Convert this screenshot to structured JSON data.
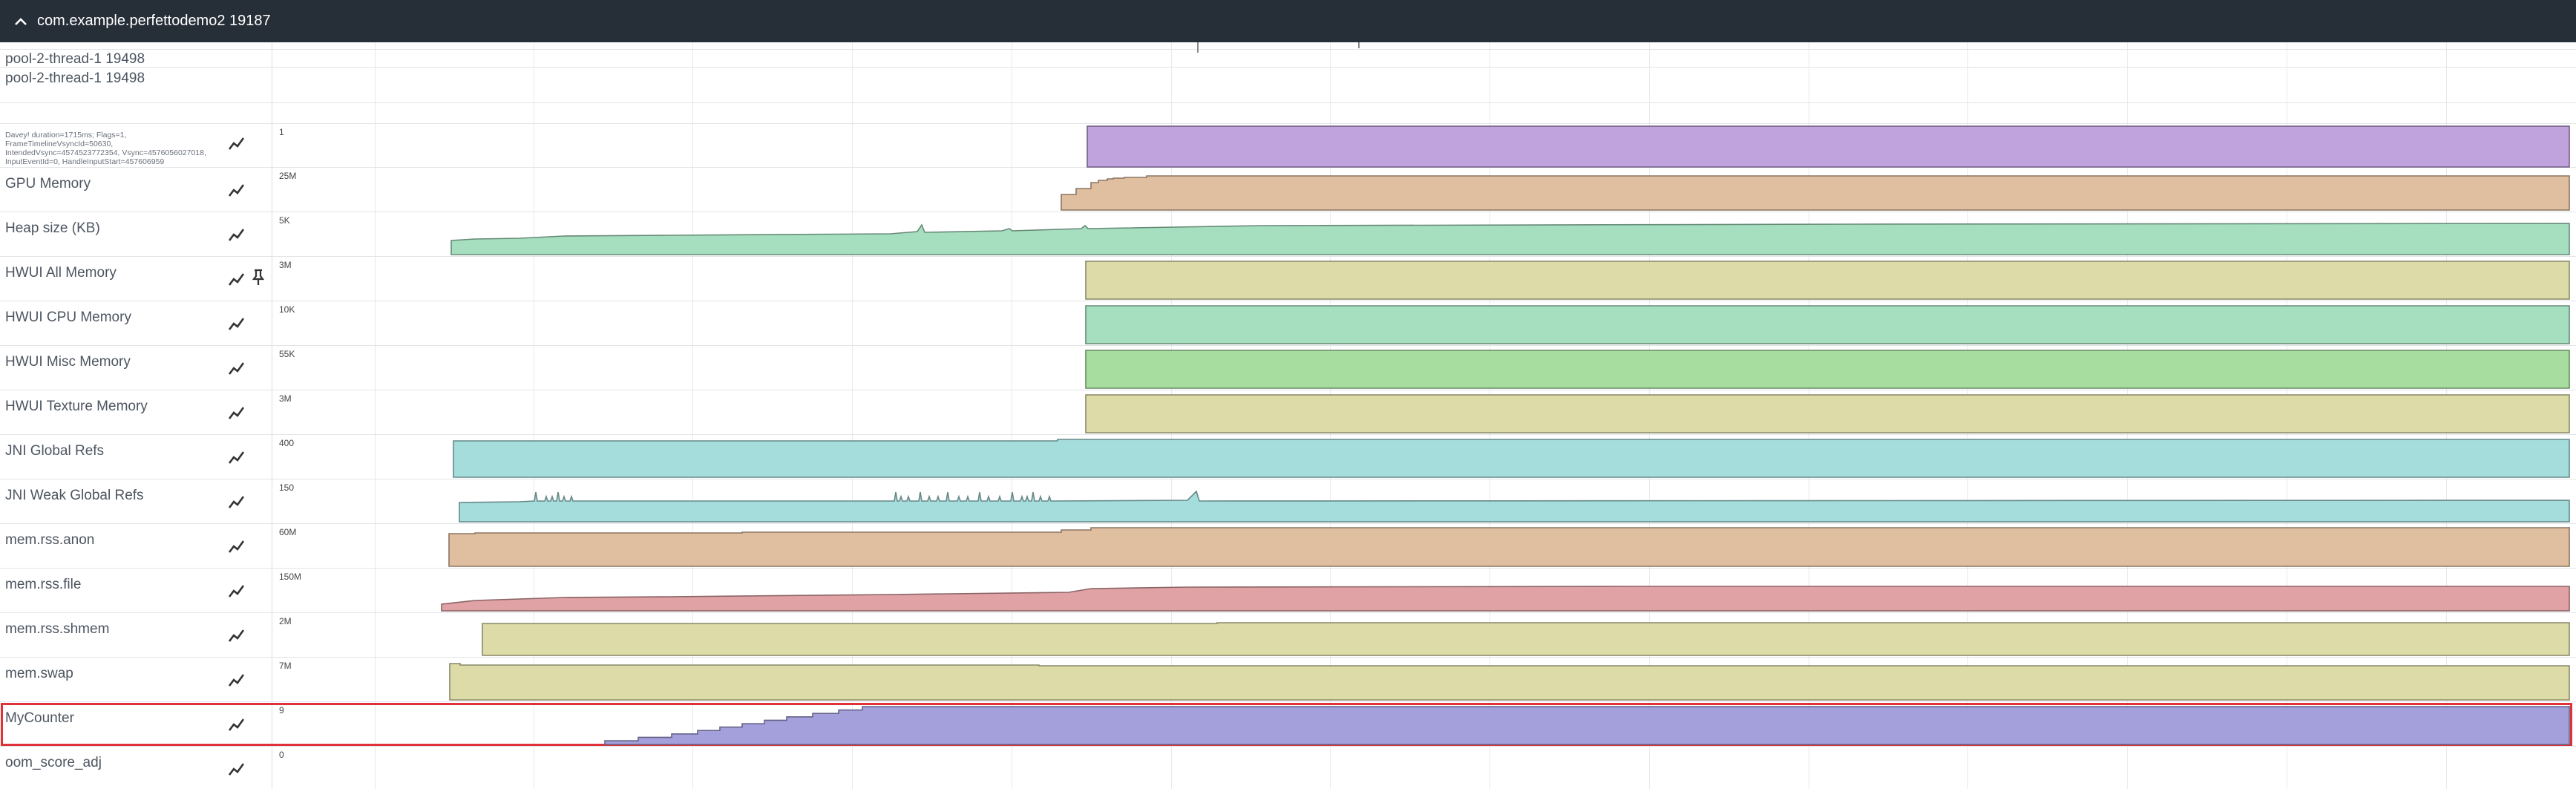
{
  "header": {
    "process_title": "com.example.perfettodemo2 19187",
    "collapse_icon": "chevron-up-icon"
  },
  "threads": [
    {
      "label": "pool-2-thread-1 19498"
    },
    {
      "label": "pool-2-thread-1 19498"
    }
  ],
  "frame_track": {
    "label": "Davey! duration=1715ms; Flags=1, FrameTimelineVsyncId=50630, IntendedVsync=4574523772354, Vsync=4576056027018, InputEventId=0, HandleInputStart=457606959",
    "scale": "1",
    "color": "#c0a3dd"
  },
  "counter_tracks": [
    {
      "name": "GPU Memory",
      "scale": "25M",
      "color": "#e0bea0"
    },
    {
      "name": "Heap size (KB)",
      "scale": "5K",
      "color": "#a6dfc0"
    },
    {
      "name": "HWUI All Memory",
      "scale": "3M",
      "color": "#dddba8",
      "pinned": true
    },
    {
      "name": "HWUI CPU Memory",
      "scale": "10K",
      "color": "#a6dfc0"
    },
    {
      "name": "HWUI Misc Memory",
      "scale": "55K",
      "color": "#a7de9f"
    },
    {
      "name": "HWUI Texture Memory",
      "scale": "3M",
      "color": "#dddba8"
    },
    {
      "name": "JNI Global Refs",
      "scale": "400",
      "color": "#a5dddc"
    },
    {
      "name": "JNI Weak Global Refs",
      "scale": "150",
      "color": "#a5dddc"
    },
    {
      "name": "mem.rss.anon",
      "scale": "60M",
      "color": "#e0bea0"
    },
    {
      "name": "mem.rss.file",
      "scale": "150M",
      "color": "#e0a2a4"
    },
    {
      "name": "mem.rss.shmem",
      "scale": "2M",
      "color": "#dddba8"
    },
    {
      "name": "mem.swap",
      "scale": "7M",
      "color": "#dddba8"
    },
    {
      "name": "MyCounter",
      "scale": "9",
      "color": "#a3a0dc",
      "selected": true
    },
    {
      "name": "oom_score_adj",
      "scale": "0",
      "color": "#a5dddc"
    }
  ],
  "icons": {
    "chart": "line-chart-icon",
    "pin": "pin-icon"
  },
  "selection_color": "#e03038"
}
